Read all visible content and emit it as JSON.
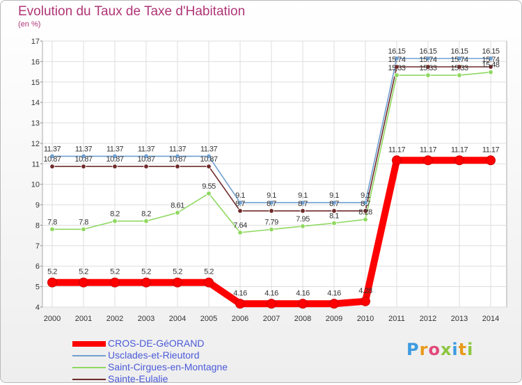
{
  "chart_data": {
    "type": "line",
    "title": "Evolution du Taux de Taxe d'Habitation",
    "ylabel": "(en %)",
    "xlabel": "",
    "x": [
      "2000",
      "2001",
      "2002",
      "2003",
      "2004",
      "2005",
      "2006",
      "2007",
      "2008",
      "2009",
      "2010",
      "2011",
      "2012",
      "2013",
      "2014"
    ],
    "ylim": [
      4,
      17
    ],
    "yticks": [
      "4",
      "5",
      "6",
      "7",
      "8",
      "9",
      "10",
      "11",
      "12",
      "13",
      "14",
      "15",
      "16",
      "17"
    ],
    "grid": true,
    "legend_position": "bottom-left",
    "series": [
      {
        "name": "CROS-DE-GéORAND",
        "color": "#ff0000",
        "values": [
          5.2,
          5.2,
          5.2,
          5.2,
          5.2,
          5.2,
          4.16,
          4.16,
          4.16,
          4.16,
          4.28,
          11.17,
          11.17,
          11.17,
          11.17
        ],
        "labels": [
          "5.2",
          "5.2",
          "5.2",
          "5.2",
          "5.2",
          "5.2",
          "4.16",
          "4.16",
          "4.16",
          "4.16",
          "4.28",
          "11.17",
          "11.17",
          "11.17",
          "11.17"
        ]
      },
      {
        "name": "Usclades-et-Rieutord",
        "color": "#6f9fd0",
        "values": [
          11.37,
          11.37,
          11.37,
          11.37,
          11.37,
          11.37,
          9.1,
          9.1,
          9.1,
          9.1,
          9.1,
          16.15,
          16.15,
          16.15,
          16.15
        ],
        "labels": [
          "11.37",
          "11.37",
          "11.37",
          "11.37",
          "11.37",
          "11.37",
          "9.1",
          "9.1",
          "9.1",
          "9.1",
          "9.1",
          "16.15",
          "16.15",
          "16.15",
          "16.15"
        ]
      },
      {
        "name": "Saint-Cirgues-en-Montagne",
        "color": "#8fd860",
        "values": [
          7.8,
          7.8,
          8.2,
          8.2,
          8.61,
          9.55,
          7.64,
          7.79,
          7.95,
          8.1,
          8.28,
          15.33,
          15.33,
          15.33,
          15.48
        ],
        "labels": [
          "7.8",
          "7.8",
          "8.2",
          "8.2",
          "8.61",
          "9.55",
          "7.64",
          "7.79",
          "7.95",
          "8.1",
          "8.28",
          "15.33",
          "15.33",
          "15.33",
          "15.48"
        ]
      },
      {
        "name": "Sainte-Eulalie",
        "color": "#6e2a2a",
        "values": [
          10.87,
          10.87,
          10.87,
          10.87,
          10.87,
          10.87,
          8.7,
          8.7,
          8.7,
          8.7,
          8.7,
          15.74,
          15.74,
          15.74,
          15.74
        ],
        "labels": [
          "10.87",
          "10.87",
          "10.87",
          "10.87",
          "10.87",
          "10.87",
          "8.7",
          "8.7",
          "8.7",
          "8.7",
          "8.7",
          "15.74",
          "15.74",
          "15.74",
          "15.74"
        ]
      }
    ]
  },
  "logo": {
    "text": [
      "P",
      "r",
      "o",
      "x",
      "i",
      "t",
      "i"
    ]
  }
}
